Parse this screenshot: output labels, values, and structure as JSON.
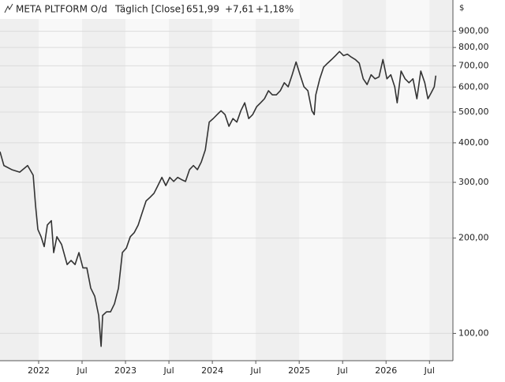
{
  "chart_data": {
    "type": "line",
    "title": "META PLTFORM O/d",
    "subtitle": "Täglich [Close]",
    "last_value": "651,99",
    "change": "+7,61",
    "change_percent": "+1,18%",
    "currency": "$",
    "color": "#333333",
    "change_color": "#2e9a2e",
    "log_scale": true,
    "grid": true,
    "x": [
      2021.555,
      2021.6,
      2021.691,
      2021.782,
      2021.873,
      2021.937,
      2021.964,
      2021.991,
      2022.028,
      2022.064,
      2022.1,
      2022.146,
      2022.173,
      2022.21,
      2022.264,
      2022.328,
      2022.373,
      2022.419,
      2022.464,
      2022.51,
      2022.555,
      2022.6,
      2022.646,
      2022.691,
      2022.719,
      2022.737,
      2022.782,
      2022.828,
      2022.873,
      2022.919,
      2022.964,
      2023.01,
      2023.055,
      2023.1,
      2023.146,
      2023.191,
      2023.237,
      2023.282,
      2023.328,
      2023.373,
      2023.419,
      2023.464,
      2023.51,
      2023.555,
      2023.6,
      2023.646,
      2023.691,
      2023.737,
      2023.782,
      2023.828,
      2023.873,
      2023.919,
      2023.964,
      2024.01,
      2024.055,
      2024.1,
      2024.146,
      2024.191,
      2024.237,
      2024.282,
      2024.328,
      2024.373,
      2024.419,
      2024.464,
      2024.51,
      2024.555,
      2024.6,
      2024.646,
      2024.691,
      2024.737,
      2024.782,
      2024.828,
      2024.873,
      2024.919,
      2024.964,
      2025.01,
      2025.055,
      2025.1,
      2025.146,
      2025.173,
      2025.191,
      2025.237,
      2025.282,
      2025.328,
      2025.373,
      2025.419,
      2025.464,
      2025.51,
      2025.555,
      2025.6,
      2025.646,
      2025.691,
      2025.737,
      2025.782,
      2025.828,
      2025.873,
      2025.919,
      2025.964,
      2026.01,
      2026.055,
      2026.1,
      2026.128,
      2026.173,
      2026.219,
      2026.264,
      2026.31,
      2026.355,
      2026.4,
      2026.446,
      2026.482,
      2026.519,
      2026.555,
      2026.573
    ],
    "values": [
      375,
      339,
      329,
      323,
      339,
      316,
      254,
      213,
      202,
      188,
      220,
      227,
      180,
      202,
      191,
      165,
      170,
      165,
      180,
      161,
      161,
      139,
      131,
      114,
      91,
      114,
      117,
      117,
      124,
      139,
      180,
      186,
      202,
      208,
      220,
      240,
      262,
      269,
      277,
      293,
      311,
      293,
      311,
      302,
      311,
      306,
      302,
      329,
      339,
      329,
      348,
      380,
      465,
      477,
      491,
      505,
      491,
      451,
      477,
      465,
      505,
      535,
      477,
      491,
      520,
      535,
      551,
      584,
      567,
      567,
      584,
      619,
      601,
      656,
      720,
      656,
      601,
      584,
      505,
      491,
      567,
      637,
      694,
      714,
      733,
      754,
      777,
      754,
      762,
      746,
      733,
      714,
      637,
      611,
      656,
      637,
      646,
      733,
      637,
      656,
      601,
      535,
      674,
      637,
      619,
      637,
      551,
      674,
      619,
      551,
      575,
      601,
      651.99
    ],
    "xlim": [
      2021.555,
      2026.77
    ],
    "xticks": [
      {
        "value": 2022,
        "label": "2022"
      },
      {
        "value": 2022.5,
        "label": "Jul"
      },
      {
        "value": 2023,
        "label": "2023"
      },
      {
        "value": 2023.5,
        "label": "Jul"
      },
      {
        "value": 2024,
        "label": "2024"
      },
      {
        "value": 2024.5,
        "label": "Jul"
      },
      {
        "value": 2025,
        "label": "2025"
      },
      {
        "value": 2025.5,
        "label": "Jul"
      },
      {
        "value": 2026,
        "label": "2026"
      },
      {
        "value": 2026.5,
        "label": "Jul"
      }
    ],
    "ylim": [
      82,
      1130
    ],
    "yticks": [
      {
        "value": 100,
        "label": "100,00"
      },
      {
        "value": 200,
        "label": "200,00"
      },
      {
        "value": 300,
        "label": "300,00"
      },
      {
        "value": 400,
        "label": "400,00"
      },
      {
        "value": 500,
        "label": "500,00"
      },
      {
        "value": 600,
        "label": "600,00"
      },
      {
        "value": 700,
        "label": "700,00"
      },
      {
        "value": 800,
        "label": "800,00"
      },
      {
        "value": 900,
        "label": "900,00"
      }
    ]
  }
}
